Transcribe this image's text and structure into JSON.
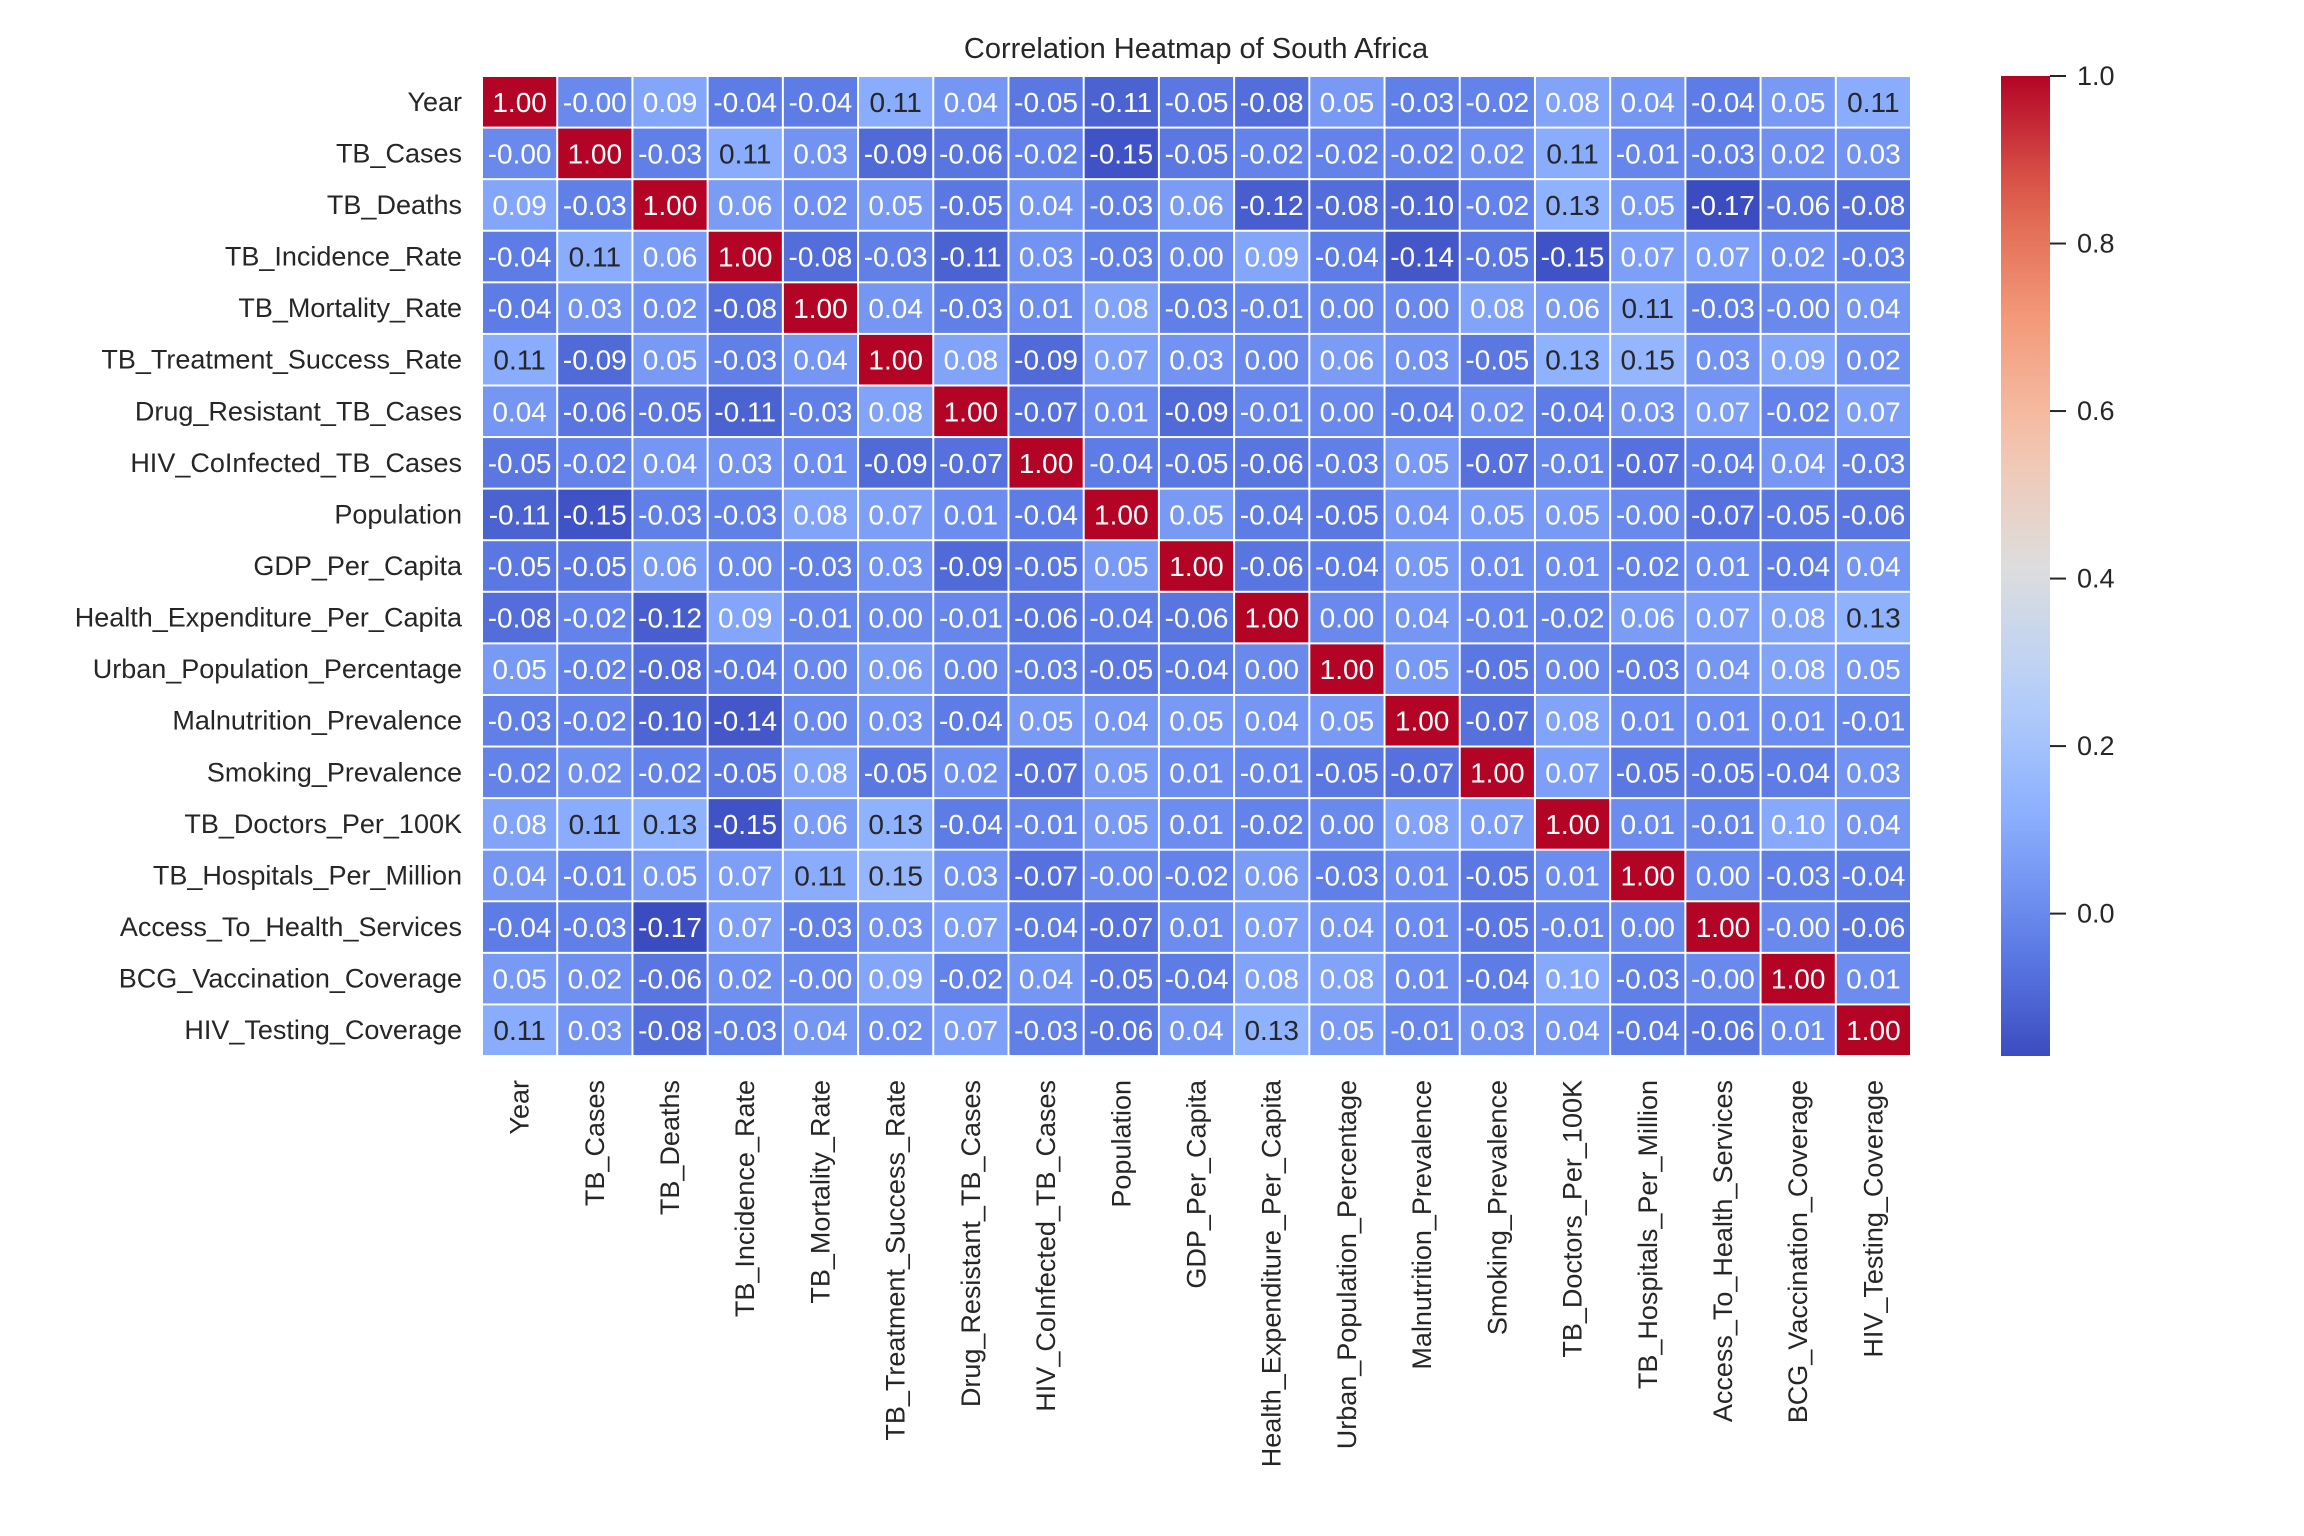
{
  "chart_data": {
    "type": "heatmap",
    "title": "Correlation Heatmap of South Africa",
    "xlabel": "",
    "ylabel": "",
    "colormap": "coolwarm",
    "vmin": -0.17,
    "vmax": 1.0,
    "annotation_format": "0.00",
    "labels": [
      "Year",
      "TB_Cases",
      "TB_Deaths",
      "TB_Incidence_Rate",
      "TB_Mortality_Rate",
      "TB_Treatment_Success_Rate",
      "Drug_Resistant_TB_Cases",
      "HIV_CoInfected_TB_Cases",
      "Population",
      "GDP_Per_Capita",
      "Health_Expenditure_Per_Capita",
      "Urban_Population_Percentage",
      "Malnutrition_Prevalence",
      "Smoking_Prevalence",
      "TB_Doctors_Per_100K",
      "TB_Hospitals_Per_Million",
      "Access_To_Health_Services",
      "BCG_Vaccination_Coverage",
      "HIV_Testing_Coverage"
    ],
    "matrix": [
      [
        "1.00",
        "-0.00",
        "0.09",
        "-0.04",
        "-0.04",
        "0.11",
        "0.04",
        "-0.05",
        "-0.11",
        "-0.05",
        "-0.08",
        "0.05",
        "-0.03",
        "-0.02",
        "0.08",
        "0.04",
        "-0.04",
        "0.05",
        "0.11"
      ],
      [
        "-0.00",
        "1.00",
        "-0.03",
        "0.11",
        "0.03",
        "-0.09",
        "-0.06",
        "-0.02",
        "-0.15",
        "-0.05",
        "-0.02",
        "-0.02",
        "-0.02",
        "0.02",
        "0.11",
        "-0.01",
        "-0.03",
        "0.02",
        "0.03"
      ],
      [
        "0.09",
        "-0.03",
        "1.00",
        "0.06",
        "0.02",
        "0.05",
        "-0.05",
        "0.04",
        "-0.03",
        "0.06",
        "-0.12",
        "-0.08",
        "-0.10",
        "-0.02",
        "0.13",
        "0.05",
        "-0.17",
        "-0.06",
        "-0.08"
      ],
      [
        "-0.04",
        "0.11",
        "0.06",
        "1.00",
        "-0.08",
        "-0.03",
        "-0.11",
        "0.03",
        "-0.03",
        "0.00",
        "0.09",
        "-0.04",
        "-0.14",
        "-0.05",
        "-0.15",
        "0.07",
        "0.07",
        "0.02",
        "-0.03"
      ],
      [
        "-0.04",
        "0.03",
        "0.02",
        "-0.08",
        "1.00",
        "0.04",
        "-0.03",
        "0.01",
        "0.08",
        "-0.03",
        "-0.01",
        "0.00",
        "0.00",
        "0.08",
        "0.06",
        "0.11",
        "-0.03",
        "-0.00",
        "0.04"
      ],
      [
        "0.11",
        "-0.09",
        "0.05",
        "-0.03",
        "0.04",
        "1.00",
        "0.08",
        "-0.09",
        "0.07",
        "0.03",
        "0.00",
        "0.06",
        "0.03",
        "-0.05",
        "0.13",
        "0.15",
        "0.03",
        "0.09",
        "0.02"
      ],
      [
        "0.04",
        "-0.06",
        "-0.05",
        "-0.11",
        "-0.03",
        "0.08",
        "1.00",
        "-0.07",
        "0.01",
        "-0.09",
        "-0.01",
        "0.00",
        "-0.04",
        "0.02",
        "-0.04",
        "0.03",
        "0.07",
        "-0.02",
        "0.07"
      ],
      [
        "-0.05",
        "-0.02",
        "0.04",
        "0.03",
        "0.01",
        "-0.09",
        "-0.07",
        "1.00",
        "-0.04",
        "-0.05",
        "-0.06",
        "-0.03",
        "0.05",
        "-0.07",
        "-0.01",
        "-0.07",
        "-0.04",
        "0.04",
        "-0.03"
      ],
      [
        "-0.11",
        "-0.15",
        "-0.03",
        "-0.03",
        "0.08",
        "0.07",
        "0.01",
        "-0.04",
        "1.00",
        "0.05",
        "-0.04",
        "-0.05",
        "0.04",
        "0.05",
        "0.05",
        "-0.00",
        "-0.07",
        "-0.05",
        "-0.06"
      ],
      [
        "-0.05",
        "-0.05",
        "0.06",
        "0.00",
        "-0.03",
        "0.03",
        "-0.09",
        "-0.05",
        "0.05",
        "1.00",
        "-0.06",
        "-0.04",
        "0.05",
        "0.01",
        "0.01",
        "-0.02",
        "0.01",
        "-0.04",
        "0.04"
      ],
      [
        "-0.08",
        "-0.02",
        "-0.12",
        "0.09",
        "-0.01",
        "0.00",
        "-0.01",
        "-0.06",
        "-0.04",
        "-0.06",
        "1.00",
        "0.00",
        "0.04",
        "-0.01",
        "-0.02",
        "0.06",
        "0.07",
        "0.08",
        "0.13"
      ],
      [
        "0.05",
        "-0.02",
        "-0.08",
        "-0.04",
        "0.00",
        "0.06",
        "0.00",
        "-0.03",
        "-0.05",
        "-0.04",
        "0.00",
        "1.00",
        "0.05",
        "-0.05",
        "0.00",
        "-0.03",
        "0.04",
        "0.08",
        "0.05"
      ],
      [
        "-0.03",
        "-0.02",
        "-0.10",
        "-0.14",
        "0.00",
        "0.03",
        "-0.04",
        "0.05",
        "0.04",
        "0.05",
        "0.04",
        "0.05",
        "1.00",
        "-0.07",
        "0.08",
        "0.01",
        "0.01",
        "0.01",
        "-0.01"
      ],
      [
        "-0.02",
        "0.02",
        "-0.02",
        "-0.05",
        "0.08",
        "-0.05",
        "0.02",
        "-0.07",
        "0.05",
        "0.01",
        "-0.01",
        "-0.05",
        "-0.07",
        "1.00",
        "0.07",
        "-0.05",
        "-0.05",
        "-0.04",
        "0.03"
      ],
      [
        "0.08",
        "0.11",
        "0.13",
        "-0.15",
        "0.06",
        "0.13",
        "-0.04",
        "-0.01",
        "0.05",
        "0.01",
        "-0.02",
        "0.00",
        "0.08",
        "0.07",
        "1.00",
        "0.01",
        "-0.01",
        "0.10",
        "0.04"
      ],
      [
        "0.04",
        "-0.01",
        "0.05",
        "0.07",
        "0.11",
        "0.15",
        "0.03",
        "-0.07",
        "-0.00",
        "-0.02",
        "0.06",
        "-0.03",
        "0.01",
        "-0.05",
        "0.01",
        "1.00",
        "0.00",
        "-0.03",
        "-0.04"
      ],
      [
        "-0.04",
        "-0.03",
        "-0.17",
        "0.07",
        "-0.03",
        "0.03",
        "0.07",
        "-0.04",
        "-0.07",
        "0.01",
        "0.07",
        "0.04",
        "0.01",
        "-0.05",
        "-0.01",
        "0.00",
        "1.00",
        "-0.00",
        "-0.06"
      ],
      [
        "0.05",
        "0.02",
        "-0.06",
        "0.02",
        "-0.00",
        "0.09",
        "-0.02",
        "0.04",
        "-0.05",
        "-0.04",
        "0.08",
        "0.08",
        "0.01",
        "-0.04",
        "0.10",
        "-0.03",
        "-0.00",
        "1.00",
        "0.01"
      ],
      [
        "0.11",
        "0.03",
        "-0.08",
        "-0.03",
        "0.04",
        "0.02",
        "0.07",
        "-0.03",
        "-0.06",
        "0.04",
        "0.13",
        "0.05",
        "-0.01",
        "0.03",
        "0.04",
        "-0.04",
        "-0.06",
        "0.01",
        "1.00"
      ]
    ],
    "colorbar": {
      "ticks": [
        0.0,
        0.2,
        0.4,
        0.6,
        0.8,
        1.0
      ],
      "tick_labels": [
        "0.0",
        "0.2",
        "0.4",
        "0.6",
        "0.8",
        "1.0"
      ],
      "range": [
        -0.17,
        1.0
      ],
      "placement": "right"
    },
    "grid": false,
    "cell_separator_color": "#ffffff"
  }
}
